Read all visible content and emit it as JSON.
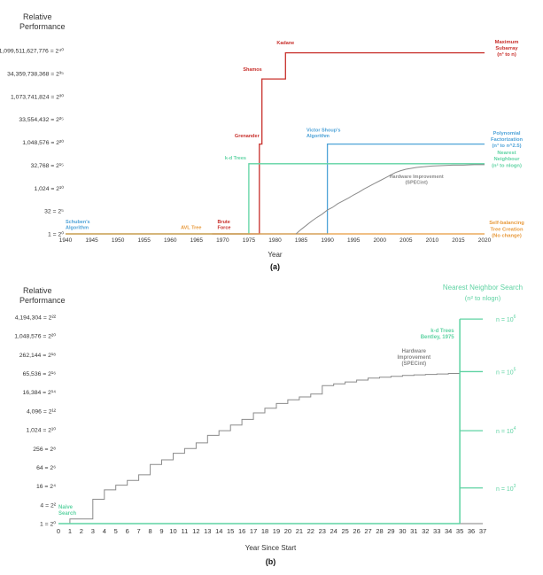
{
  "colors": {
    "grey": "#8a8a8a",
    "red": "#c8302c",
    "blue": "#4fa3d8",
    "green": "#5fd3a3",
    "orange": "#e89a3c",
    "axis": "#555555",
    "text": "#333333"
  },
  "chart_data": [
    {
      "panel": "(a)",
      "type": "line",
      "title": "",
      "ylabel_line1": "Relative",
      "ylabel_line2": "Performance",
      "xlabel": "Year",
      "xlim": [
        1940,
        2020
      ],
      "ylim_log2": [
        0,
        40
      ],
      "x_ticks": [
        1940,
        1945,
        1950,
        1955,
        1960,
        1965,
        1970,
        1975,
        1980,
        1985,
        1990,
        1995,
        2000,
        2005,
        2010,
        2015,
        2020
      ],
      "y_ticks": [
        {
          "exp": 0,
          "label": "1 = 2⁰"
        },
        {
          "exp": 5,
          "label": "32 = 2⁵"
        },
        {
          "exp": 10,
          "label": "1,024 = 2¹⁰"
        },
        {
          "exp": 15,
          "label": "32,768 = 2¹⁵"
        },
        {
          "exp": 20,
          "label": "1,048,576 = 2²⁰"
        },
        {
          "exp": 25,
          "label": "33,554,432 = 2²⁵"
        },
        {
          "exp": 30,
          "label": "1,073,741,824 = 2³⁰"
        },
        {
          "exp": 35,
          "label": "34,359,738,368 = 2³⁵"
        },
        {
          "exp": 40,
          "label": "1,099,511,627,776 = 2⁴⁰"
        }
      ],
      "series": [
        {
          "name": "Maximum Subarray (n³ to n)",
          "label_lines": [
            "Maximum",
            "Subarray",
            "(n³ to n)"
          ],
          "color": "red",
          "points": [
            [
              1968,
              0
            ],
            [
              1977,
              0
            ],
            [
              1977,
              19.6
            ],
            [
              1977.5,
              19.6
            ],
            [
              1977.5,
              33.8
            ],
            [
              1982,
              33.8
            ],
            [
              1982,
              39.5
            ],
            [
              2020,
              39.5
            ]
          ]
        },
        {
          "name": "Polynomial Factorization (n³ to n^2.5)",
          "label_lines": [
            "Polynomial",
            "Factorization",
            "(n³ to n^2.5)"
          ],
          "color": "blue",
          "points": [
            [
              1940,
              0
            ],
            [
              1990,
              0
            ],
            [
              1990,
              19.6
            ],
            [
              2020,
              19.6
            ]
          ]
        },
        {
          "name": "Nearest Neighbour (n² to nlogn)",
          "label_lines": [
            "Nearest",
            "Neighbour",
            "(n² to nlogn)"
          ],
          "color": "green",
          "points": [
            [
              1940,
              0
            ],
            [
              1975,
              0
            ],
            [
              1975,
              15.3
            ],
            [
              2020,
              15.3
            ]
          ]
        },
        {
          "name": "Self-balancing Tree Creation (No change)",
          "label_lines": [
            "Self-balancing",
            "Tree Creation",
            "(No change)"
          ],
          "color": "orange",
          "points": [
            [
              1940,
              0
            ],
            [
              2020,
              0
            ]
          ]
        },
        {
          "name": "Hardware Improvement (SPECint)",
          "color": "grey",
          "points": [
            [
              1984,
              0
            ],
            [
              1985,
              1
            ],
            [
              1986,
              1.9
            ],
            [
              1987,
              2.8
            ],
            [
              1988,
              3.6
            ],
            [
              1989,
              4.3
            ],
            [
              1990,
              5.2
            ],
            [
              1991,
              5.8
            ],
            [
              1992,
              6.6
            ],
            [
              1993,
              7.2
            ],
            [
              1994,
              7.8
            ],
            [
              1995,
              8.5
            ],
            [
              1996,
              9.1
            ],
            [
              1997,
              9.8
            ],
            [
              1998,
              10.4
            ],
            [
              1999,
              11
            ],
            [
              2000,
              11.6
            ],
            [
              2001,
              12.2
            ],
            [
              2002,
              12.8
            ],
            [
              2003,
              13.4
            ],
            [
              2004,
              13.8
            ],
            [
              2005,
              14.1
            ],
            [
              2006,
              14.3
            ],
            [
              2007,
              14.5
            ],
            [
              2008,
              14.6
            ],
            [
              2009,
              14.7
            ],
            [
              2010,
              14.8
            ],
            [
              2012,
              14.9
            ],
            [
              2014,
              15
            ],
            [
              2016,
              15
            ],
            [
              2018,
              15.1
            ],
            [
              2020,
              15.1
            ]
          ]
        }
      ],
      "annotations": [
        {
          "text": "Kadane",
          "lines": [
            "Kadane"
          ],
          "x": 1982,
          "y": 41.4,
          "color": "red",
          "anchor": "middle"
        },
        {
          "text": "Shamos",
          "lines": [
            "Shamos"
          ],
          "x": 1977.5,
          "y": 35.6,
          "color": "red",
          "anchor": "end"
        },
        {
          "text": "Grenander",
          "lines": [
            "Grenander"
          ],
          "x": 1977,
          "y": 21.1,
          "color": "red",
          "anchor": "end"
        },
        {
          "text": "Brute Force",
          "lines": [
            "Brute",
            "Force"
          ],
          "x": 1969,
          "y": 2.3,
          "color": "red",
          "anchor": "start"
        },
        {
          "text": "Victor Shoup's Algorithm",
          "lines": [
            "Victor Shoup's",
            "Algorithm"
          ],
          "x": 1986,
          "y": 22.3,
          "color": "blue",
          "anchor": "start"
        },
        {
          "text": "Schuben's Algorithm",
          "lines": [
            "Schuben's",
            "Algorithm"
          ],
          "x": 1940,
          "y": 2.3,
          "color": "blue",
          "anchor": "start"
        },
        {
          "text": "k-d Trees",
          "lines": [
            "k-d Trees"
          ],
          "x": 1974.5,
          "y": 16.2,
          "color": "green",
          "anchor": "end"
        },
        {
          "text": "AVL Tree",
          "lines": [
            "AVL Tree"
          ],
          "x": 1962,
          "y": 1.1,
          "color": "orange",
          "anchor": "start"
        },
        {
          "text": "Hardware Improvement (SPECint)",
          "lines": [
            "Hardware Improvement",
            "(SPECint)"
          ],
          "x": 2007,
          "y": 12.2,
          "color": "grey",
          "anchor": "middle"
        }
      ],
      "panel_label": "(a)"
    },
    {
      "panel": "(b)",
      "type": "line",
      "title": "Nearest Neighbor Search (n² to nlogn)",
      "title_line1": "Nearest Neighbor Search",
      "title_line2": "(n² to nlogn)",
      "ylabel_line1": "Relative",
      "ylabel_line2": "Performance",
      "xlabel": "Year Since Start",
      "xlim": [
        0,
        37
      ],
      "ylim_log2": [
        0,
        22
      ],
      "x_ticks": [
        0,
        1,
        2,
        3,
        4,
        5,
        6,
        7,
        8,
        9,
        10,
        11,
        12,
        13,
        14,
        15,
        16,
        17,
        18,
        19,
        20,
        21,
        22,
        23,
        24,
        25,
        26,
        27,
        28,
        29,
        30,
        31,
        32,
        33,
        34,
        35,
        36,
        37
      ],
      "y_ticks": [
        {
          "exp": 0,
          "label": "1 = 2⁰"
        },
        {
          "exp": 2,
          "label": "4 = 2²"
        },
        {
          "exp": 4,
          "label": "16 = 2⁴"
        },
        {
          "exp": 6,
          "label": "64 = 2⁶"
        },
        {
          "exp": 8,
          "label": "256 = 2⁸"
        },
        {
          "exp": 10,
          "label": "1,024 = 2¹⁰"
        },
        {
          "exp": 12,
          "label": "4,096 = 2¹²"
        },
        {
          "exp": 14,
          "label": "16,384 = 2¹⁴"
        },
        {
          "exp": 16,
          "label": "65,536 = 2¹⁶"
        },
        {
          "exp": 18,
          "label": "262,144 = 2¹⁸"
        },
        {
          "exp": 20,
          "label": "1,048,576 = 2²⁰"
        },
        {
          "exp": 22,
          "label": "4,194,304 = 2²²"
        }
      ],
      "series": [
        {
          "name": "Hardware Improvement (SPECint)",
          "color": "grey",
          "points": [
            [
              0,
              0
            ],
            [
              1,
              0.5
            ],
            [
              2,
              0.5
            ],
            [
              3,
              2.6
            ],
            [
              4,
              3.6
            ],
            [
              5,
              4.1
            ],
            [
              6,
              4.6
            ],
            [
              7,
              5.2
            ],
            [
              8,
              6.3
            ],
            [
              9,
              6.8
            ],
            [
              10,
              7.5
            ],
            [
              11,
              8
            ],
            [
              12,
              8.6
            ],
            [
              13,
              9.4
            ],
            [
              14,
              9.9
            ],
            [
              15,
              10.5
            ],
            [
              16,
              11.1
            ],
            [
              17,
              11.8
            ],
            [
              18,
              12.3
            ],
            [
              19,
              12.8
            ],
            [
              20,
              13.2
            ],
            [
              21,
              13.5
            ],
            [
              22,
              13.8
            ],
            [
              23,
              14.7
            ],
            [
              24,
              14.9
            ],
            [
              25,
              15.1
            ],
            [
              26,
              15.3
            ],
            [
              27,
              15.5
            ],
            [
              28,
              15.6
            ],
            [
              29,
              15.7
            ],
            [
              30,
              15.8
            ],
            [
              31,
              15.85
            ],
            [
              32,
              15.9
            ],
            [
              33,
              15.95
            ],
            [
              34,
              16
            ],
            [
              35,
              16
            ]
          ]
        },
        {
          "name": "Naive Search",
          "color": "green",
          "points": [
            [
              0,
              0
            ],
            [
              35,
              0
            ]
          ]
        },
        {
          "name": "k-d Trees (Bentley, 1975)",
          "color": "green",
          "points": [
            [
              35,
              0
            ],
            [
              35,
              21.8
            ]
          ]
        }
      ],
      "n_levels": [
        {
          "label": "n = 10⁶",
          "base": "n = 10",
          "sup": "6",
          "exp": 21.8
        },
        {
          "label": "n = 10⁵",
          "base": "n = 10",
          "sup": "5",
          "exp": 16.2
        },
        {
          "label": "n = 10⁴",
          "base": "n = 10",
          "sup": "4",
          "exp": 9.9
        },
        {
          "label": "n = 10³",
          "base": "n = 10",
          "sup": "3",
          "exp": 3.8
        }
      ],
      "annotations": [
        {
          "text": "k-d Trees Bentley, 1975",
          "lines": [
            "k-d Trees",
            "Bentley, 1975"
          ],
          "x": 34.5,
          "y": 20.4,
          "color": "green",
          "anchor": "end"
        },
        {
          "text": "Hardware Improvement (SPECint)",
          "lines": [
            "Hardware",
            "Improvement",
            "(SPECint)"
          ],
          "x": 31,
          "y": 18.2,
          "color": "grey",
          "anchor": "middle"
        },
        {
          "text": "Naive Search",
          "lines": [
            "Naive",
            "Search"
          ],
          "x": 0,
          "y": 1.6,
          "color": "green",
          "anchor": "start"
        }
      ],
      "panel_label": "(b)"
    }
  ]
}
